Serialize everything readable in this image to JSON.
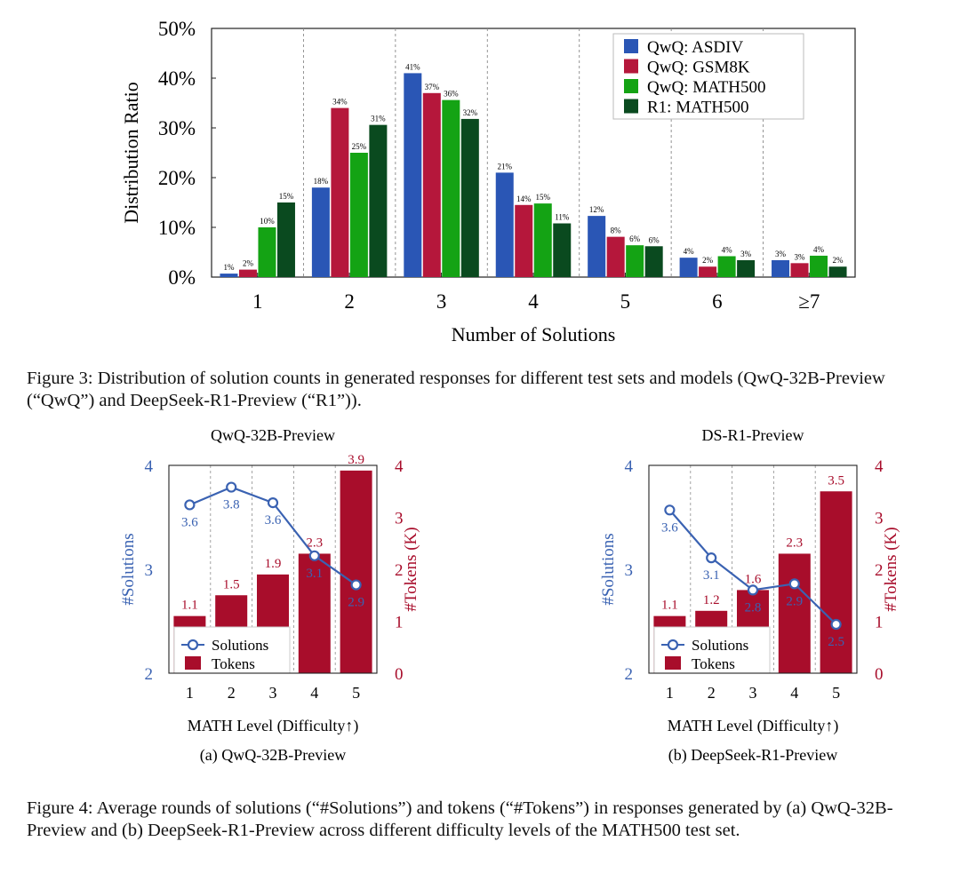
{
  "chart_data": [
    {
      "type": "bar",
      "title": "",
      "xlabel": "Number of Solutions",
      "ylabel": "Distribution Ratio",
      "ylim": [
        0,
        50
      ],
      "yticks": [
        "0%",
        "10%",
        "20%",
        "30%",
        "40%",
        "50%"
      ],
      "grid": "vertical dashed separators",
      "legend_position": "top-right",
      "categories": [
        "1",
        "2",
        "3",
        "4",
        "5",
        "6",
        "≥7"
      ],
      "series": [
        {
          "name": "QwQ: ASDIV",
          "color": "#2a56b5",
          "values": [
            0.7,
            18,
            41,
            21,
            12.3,
            3.9,
            3.4
          ],
          "labels": [
            "1%",
            "18%",
            "41%",
            "21%",
            "12%",
            "4%",
            "3%"
          ]
        },
        {
          "name": "QwQ: GSM8K",
          "color": "#b5173b",
          "values": [
            1.5,
            34,
            37,
            14.5,
            8.1,
            2.1,
            2.8
          ],
          "labels": [
            "2%",
            "34%",
            "37%",
            "14%",
            "8%",
            "2%",
            "3%"
          ]
        },
        {
          "name": "QwQ: MATH500",
          "color": "#14a314",
          "values": [
            10,
            25,
            35.6,
            14.8,
            6.4,
            4.2,
            4.3
          ],
          "labels": [
            "10%",
            "25%",
            "36%",
            "15%",
            "6%",
            "4%",
            "4%"
          ]
        },
        {
          "name": "R1: MATH500",
          "color": "#0a4a1f",
          "values": [
            15,
            30.6,
            31.8,
            10.8,
            6.2,
            3.4,
            2.1
          ],
          "labels": [
            "15%",
            "31%",
            "32%",
            "11%",
            "6%",
            "3%",
            "2%"
          ]
        }
      ]
    },
    {
      "type": "bar+line",
      "title": "QwQ-32B-Preview",
      "subcaption": "(a) QwQ-32B-Preview",
      "xlabel": "MATH Level (Difficulty↑)",
      "ylabel_left": "#Solutions",
      "ylabel_right": "#Tokens (K)",
      "ylim_left": [
        2,
        4
      ],
      "ylim_right": [
        0,
        4
      ],
      "yticks_left": [
        "2",
        "3",
        "4"
      ],
      "yticks_right": [
        "0",
        "1",
        "2",
        "3",
        "4"
      ],
      "categories": [
        "1",
        "2",
        "3",
        "4",
        "5"
      ],
      "legend": [
        "Solutions",
        "Tokens"
      ],
      "solutions": [
        3.6,
        3.8,
        3.6,
        3.1,
        2.9
      ],
      "solutions_plot": [
        3.62,
        3.79,
        3.64,
        3.13,
        2.85
      ],
      "tokens": [
        1.1,
        1.5,
        1.9,
        2.3,
        3.9
      ]
    },
    {
      "type": "bar+line",
      "title": "DS-R1-Preview",
      "subcaption": "(b) DeepSeek-R1-Preview",
      "xlabel": "MATH Level (Difficulty↑)",
      "ylabel_left": "#Solutions",
      "ylabel_right": "#Tokens (K)",
      "ylim_left": [
        2,
        4
      ],
      "ylim_right": [
        0,
        4
      ],
      "yticks_left": [
        "2",
        "3",
        "4"
      ],
      "yticks_right": [
        "0",
        "1",
        "2",
        "3",
        "4"
      ],
      "categories": [
        "1",
        "2",
        "3",
        "4",
        "5"
      ],
      "legend": [
        "Solutions",
        "Tokens"
      ],
      "solutions": [
        3.6,
        3.1,
        2.8,
        2.9,
        2.5
      ],
      "solutions_plot": [
        3.57,
        3.11,
        2.8,
        2.86,
        2.47
      ],
      "tokens": [
        1.1,
        1.2,
        1.6,
        2.3,
        3.5
      ]
    }
  ],
  "captions": {
    "fig3": "Figure 3: Distribution of solution counts in generated responses for different test sets and models (QwQ-32B-Preview (“QwQ”) and DeepSeek-R1-Preview (“R1”)).",
    "fig4": "Figure 4: Average rounds of solutions (“#Solutions”) and tokens (“#Tokens”) in responses generated by (a) QwQ-32B-Preview and (b) DeepSeek-R1-Preview across different difficulty levels of the MATH500 test set."
  },
  "colors": {
    "solutions_line": "#3a62b2",
    "tokens_bar": "#a80d2b",
    "axis_left": "#3a62b2",
    "axis_right": "#a80d2b"
  }
}
